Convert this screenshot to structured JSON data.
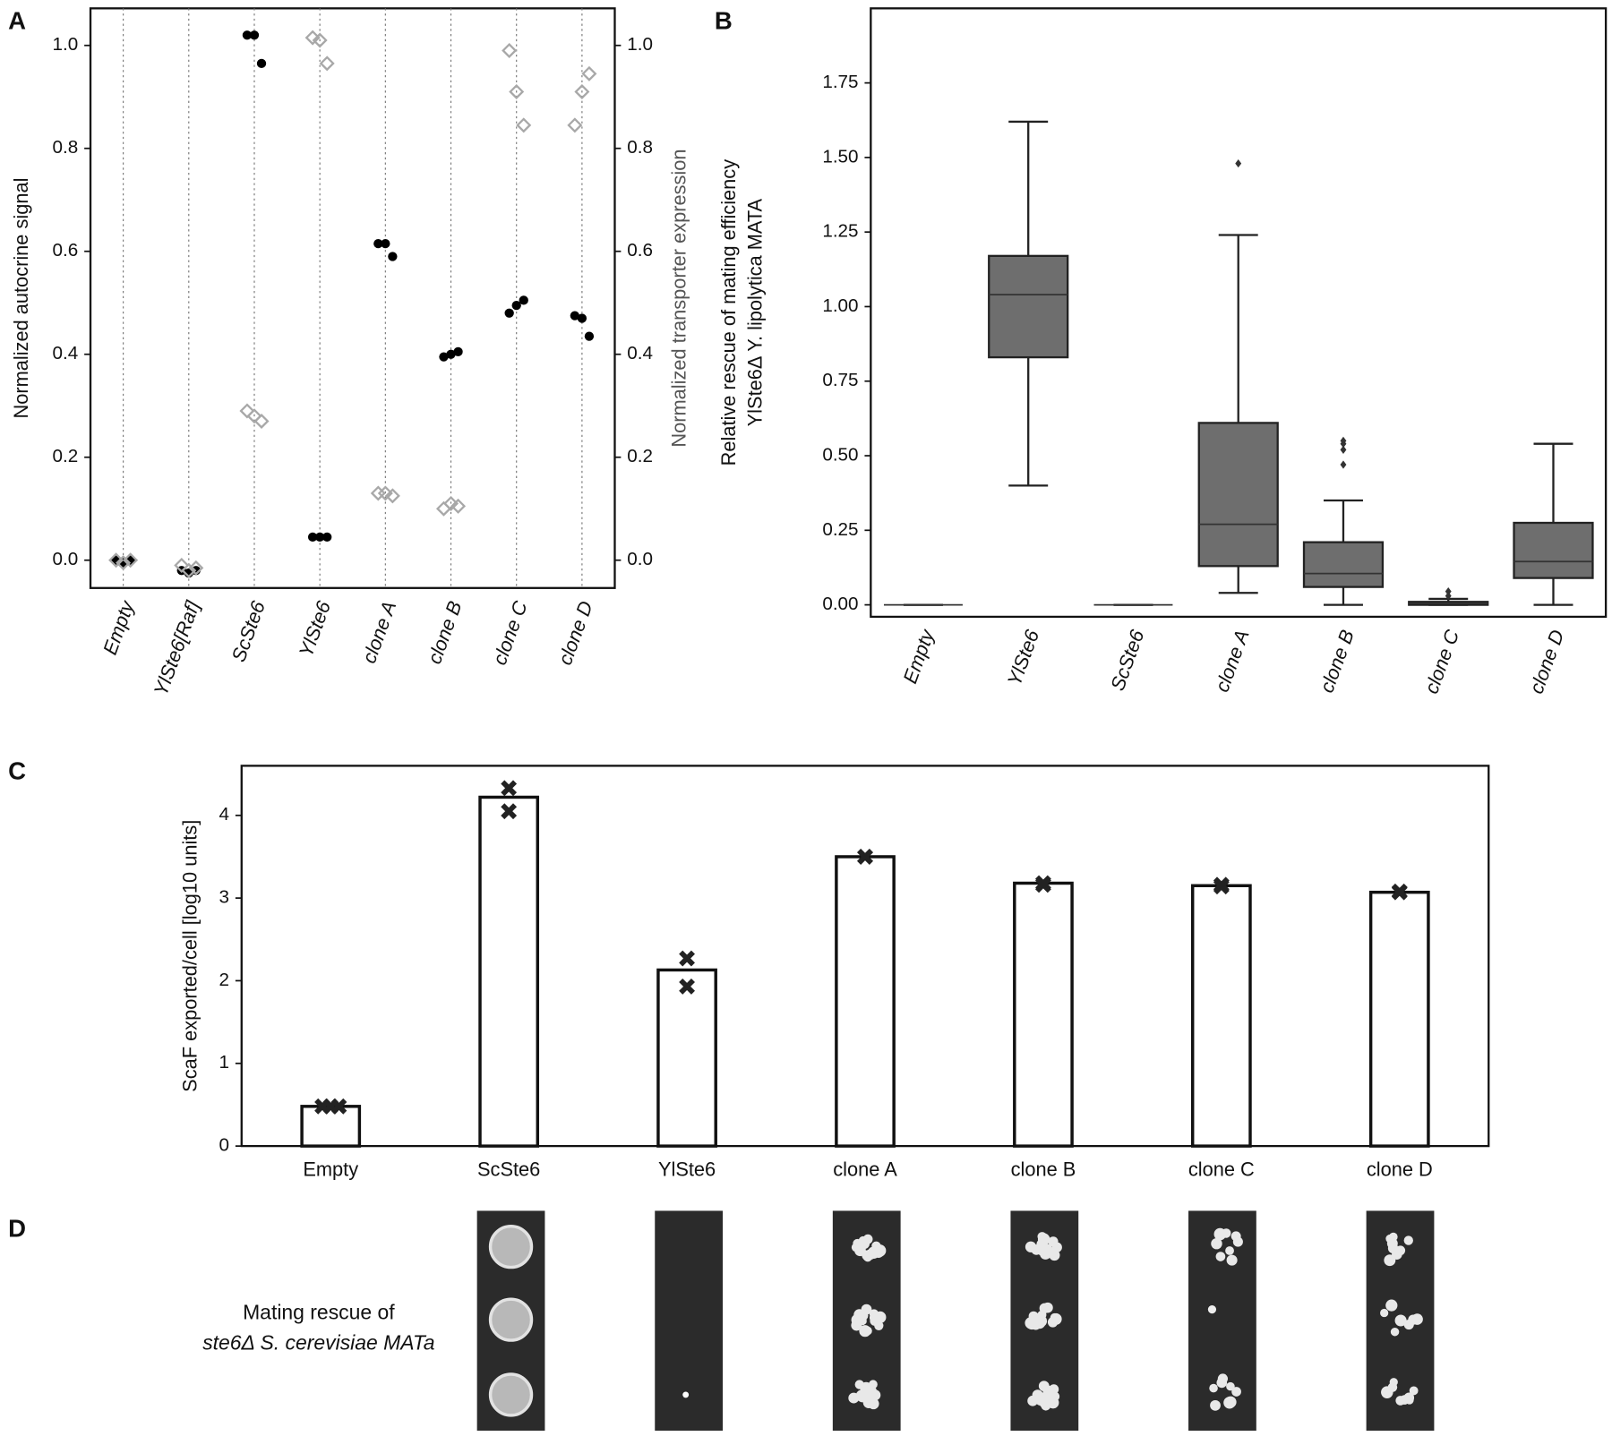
{
  "chart_data": [
    {
      "type": "strip",
      "panel": "A",
      "categories": [
        "Empty",
        "YlSte6[Raf]",
        "ScSte6",
        "YlSte6",
        "clone A",
        "clone B",
        "clone C",
        "clone D"
      ],
      "y_label": "Normalized autocrine signal",
      "y2_label": "Normalized transporter expression",
      "ylim": [
        -0.054,
        1.072
      ],
      "yticks": [
        {
          "value": 0,
          "label": "0.0"
        },
        0.2,
        0.4,
        0.6,
        0.8,
        {
          "value": 1,
          "label": "1.0"
        }
      ],
      "y2lim": [
        -0.054,
        1.072
      ],
      "y2ticks": [
        {
          "value": 0,
          "label": "0.0"
        },
        0.2,
        0.4,
        0.6,
        0.8,
        {
          "value": 1,
          "label": "1.0"
        }
      ],
      "category_grid": true,
      "series": [
        {
          "color": "#000000",
          "marker": "circle",
          "values": [
            [
              0.0,
              -0.005,
              0.0
            ],
            [
              -0.02,
              -0.025,
              -0.02
            ],
            [
              1.02,
              1.02,
              0.965
            ],
            [
              0.045,
              0.045,
              0.045
            ],
            [
              0.615,
              0.615,
              0.59
            ],
            [
              0.395,
              0.4,
              0.405
            ],
            [
              0.48,
              0.495,
              0.505
            ],
            [
              0.475,
              0.47,
              0.435
            ]
          ]
        },
        {
          "color": "#a8a8a8",
          "marker": "diamond",
          "axis": "y2",
          "values": [
            [
              0.0,
              -0.005,
              0.0
            ],
            [
              -0.01,
              -0.02,
              -0.015
            ],
            [
              0.29,
              0.28,
              0.27
            ],
            [
              1.015,
              1.01,
              0.965
            ],
            [
              0.13,
              0.13,
              0.125
            ],
            [
              0.1,
              0.11,
              0.105
            ],
            [
              0.99,
              0.91,
              0.845
            ],
            [
              0.845,
              0.91,
              0.945
            ]
          ]
        }
      ]
    },
    {
      "type": "box",
      "panel": "B",
      "categories": [
        "Empty",
        "YlSte6",
        "ScSte6",
        "clone A",
        "clone B",
        "clone C",
        "clone D"
      ],
      "y_label": [
        "Relative rescue of mating efficiency",
        "YlSte6Δ Y. lipolytica MATA"
      ],
      "ylim": [
        -0.04,
        2.0
      ],
      "yticks": [
        {
          "value": 0,
          "label": "0.00"
        },
        0.25,
        {
          "value": 0.5,
          "label": "0.50"
        },
        0.75,
        {
          "value": 1,
          "label": "1.00"
        },
        1.25,
        {
          "value": 1.5,
          "label": "1.50"
        },
        1.75
      ],
      "color": "#6e6e6e",
      "boxes": [
        {
          "whislo": 0,
          "q1": 0,
          "med": 0,
          "q3": 0,
          "whishi": 0,
          "fliers": []
        },
        {
          "whislo": 0.4,
          "q1": 0.83,
          "med": 1.04,
          "q3": 1.17,
          "whishi": 1.62,
          "fliers": []
        },
        {
          "whislo": 0,
          "q1": 0,
          "med": 0,
          "q3": 0,
          "whishi": 0,
          "fliers": []
        },
        {
          "whislo": 0.04,
          "q1": 0.13,
          "med": 0.27,
          "q3": 0.61,
          "whishi": 1.24,
          "fliers": [
            1.48
          ]
        },
        {
          "whislo": 0.0,
          "q1": 0.06,
          "med": 0.105,
          "q3": 0.21,
          "whishi": 0.35,
          "fliers": [
            0.47,
            0.52,
            0.54,
            0.55
          ]
        },
        {
          "whislo": 0.0,
          "q1": 0.0,
          "med": 0.005,
          "q3": 0.01,
          "whishi": 0.02,
          "fliers": [
            0.03,
            0.045
          ]
        },
        {
          "whislo": 0.0,
          "q1": 0.09,
          "med": 0.145,
          "q3": 0.275,
          "whishi": 0.54,
          "fliers": []
        }
      ]
    },
    {
      "type": "bar",
      "panel": "C",
      "categories": [
        "Empty",
        "ScSte6",
        "YlSte6",
        "clone A",
        "clone B",
        "clone C",
        "clone D"
      ],
      "y_label": "ScaF exported/cell [log10 units]",
      "ylim": [
        0,
        4.6
      ],
      "yticks": [
        0,
        1,
        2,
        3,
        4
      ],
      "color": "#ffffff",
      "values": [
        0.48,
        4.22,
        2.13,
        3.5,
        3.18,
        3.15,
        3.07
      ],
      "replicates": [
        [
          0.48,
          0.48,
          0.48
        ],
        [
          4.33,
          4.05
        ],
        [
          2.27,
          1.93
        ],
        [
          3.5,
          3.5
        ],
        [
          3.18,
          3.16
        ],
        [
          3.16,
          3.14
        ],
        [
          3.08,
          3.07
        ]
      ]
    }
  ],
  "panel_d": {
    "panel": "D",
    "caption": [
      "Mating rescue of",
      "ste6Δ S. cerevisiae MATa"
    ]
  }
}
